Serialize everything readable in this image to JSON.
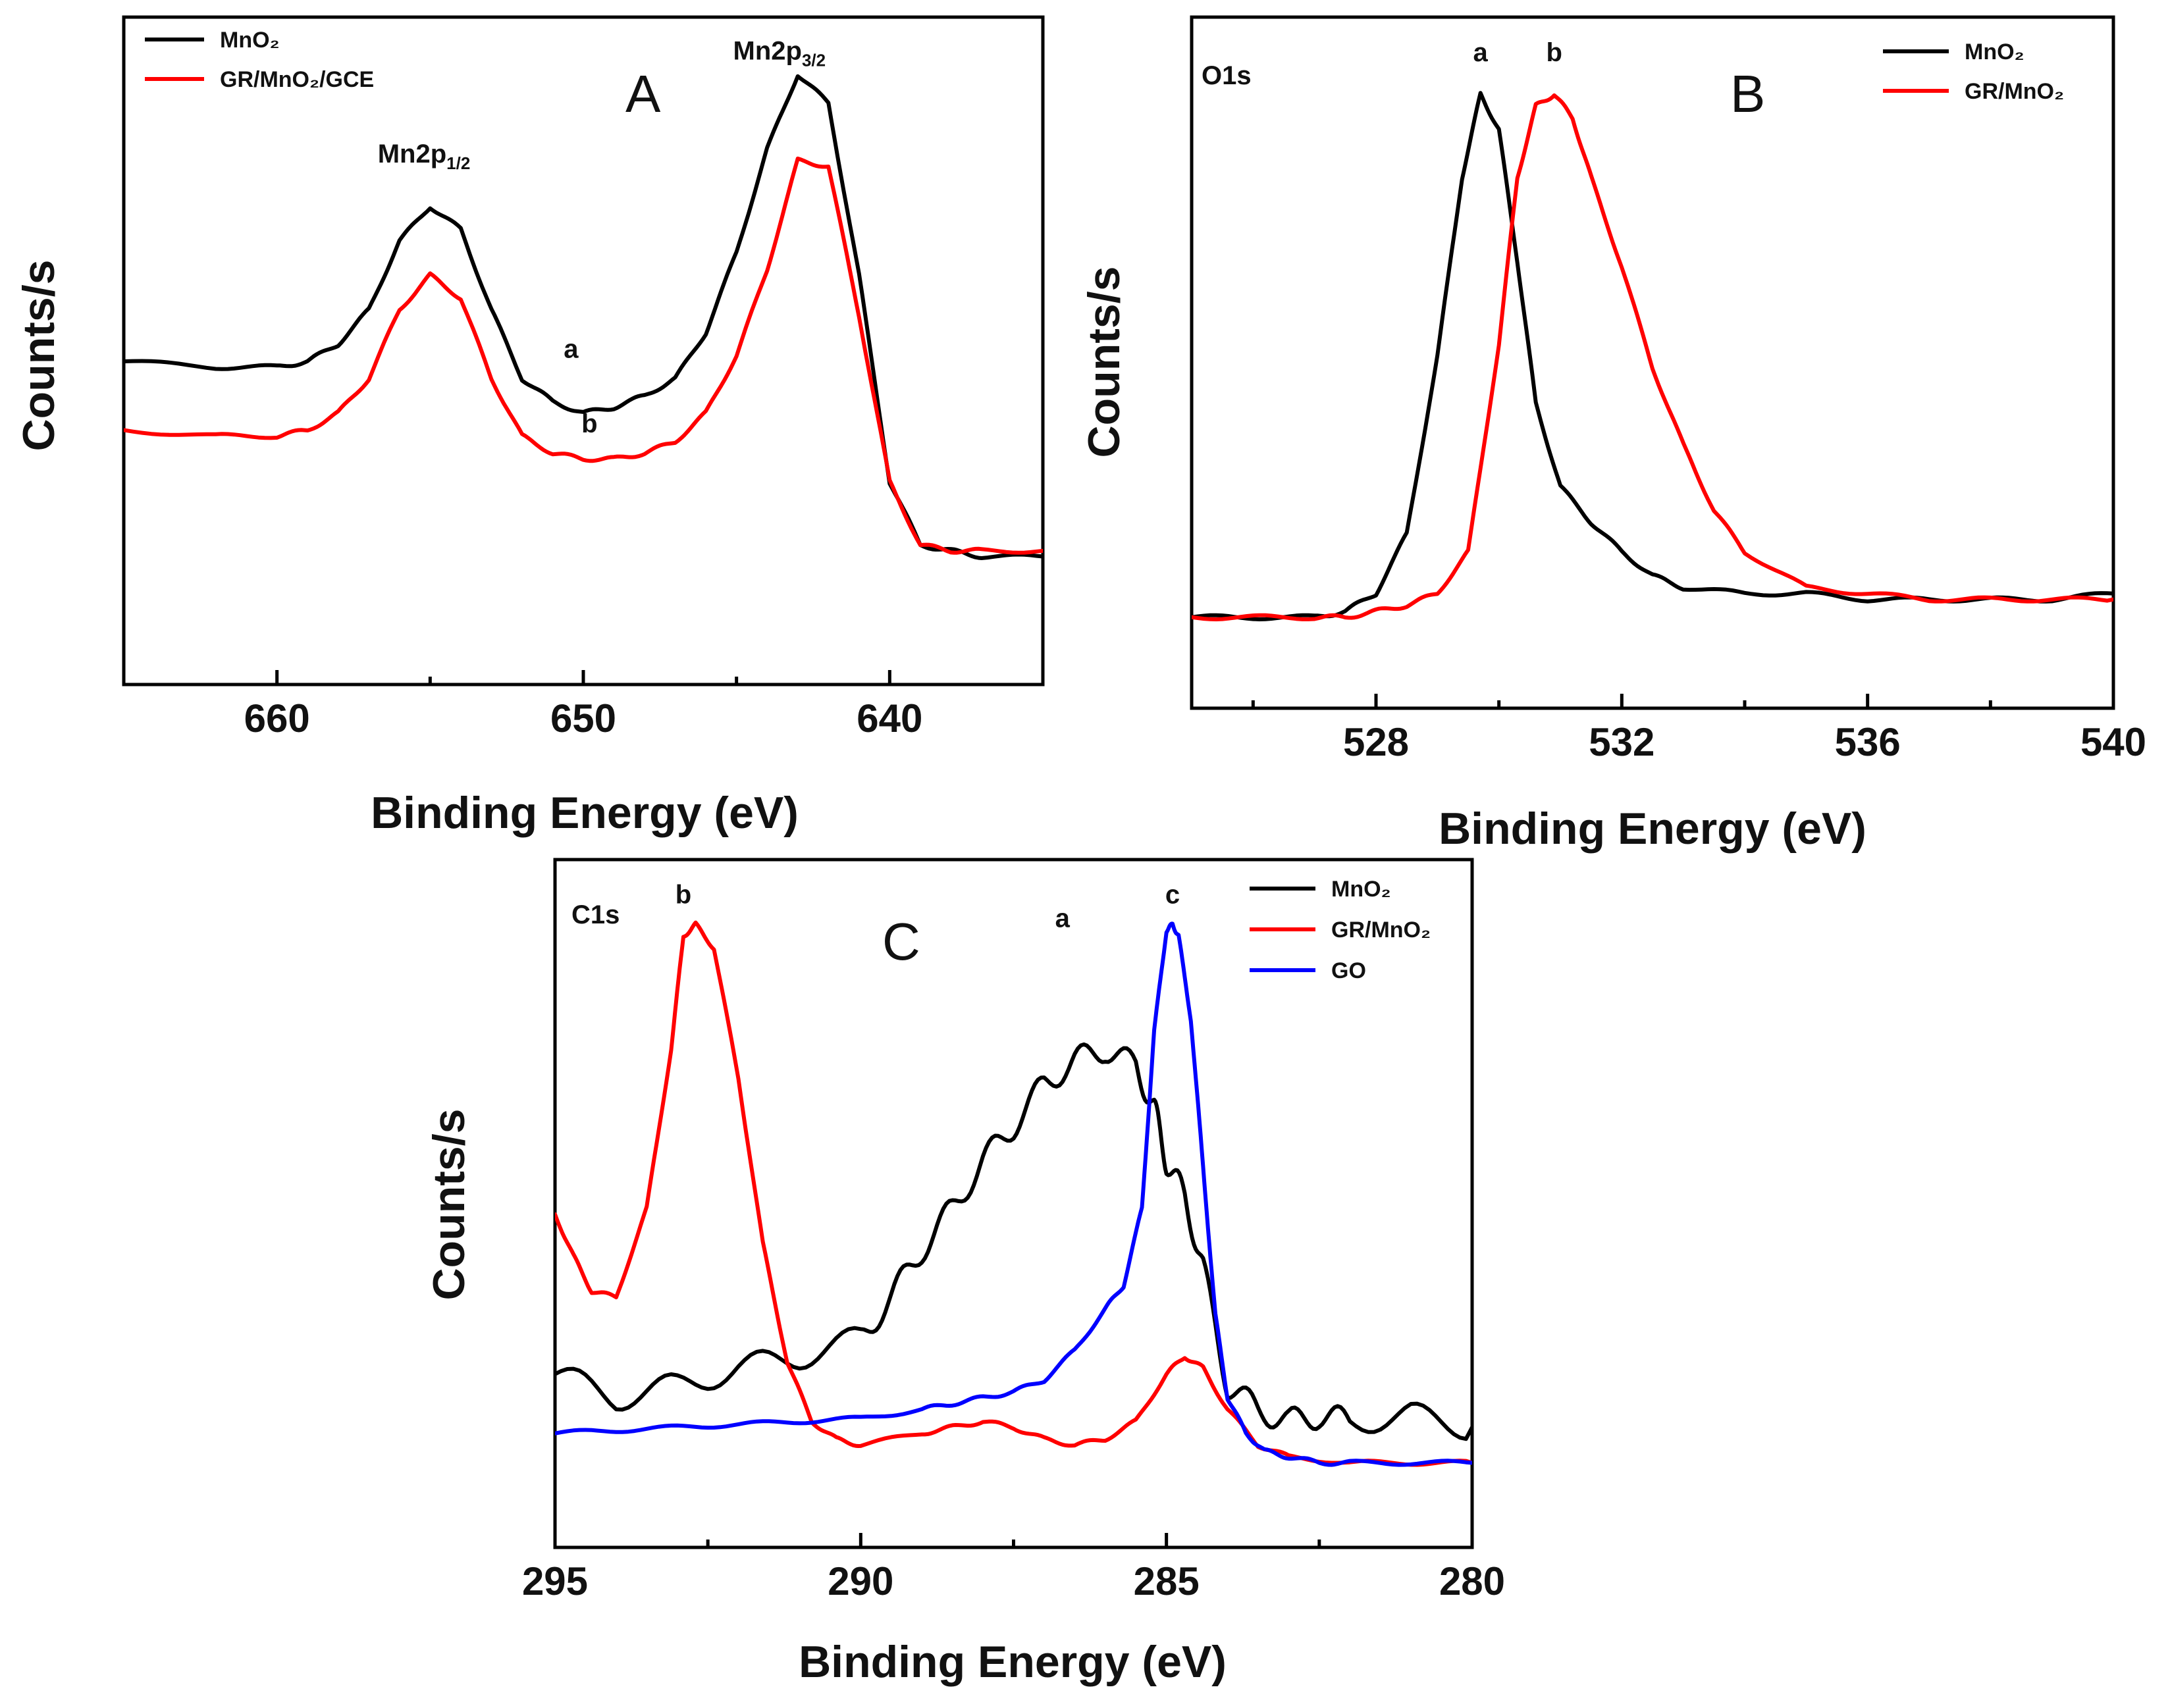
{
  "chart_data": [
    {
      "type": "line",
      "panel": "A",
      "xlabel": "Binding Energy (eV)",
      "ylabel": "Counts/s",
      "xlim": [
        665,
        635
      ],
      "ylim": [
        0,
        100
      ],
      "xticks": [
        660,
        650,
        640
      ],
      "legend": [
        "MnO₂",
        "GR/MnO₂/GCE"
      ],
      "legend_position": "top-left",
      "annotations": [
        {
          "text": "Mn2p",
          "sub": "1/2",
          "x": 655.2,
          "y": 80
        },
        {
          "text": "Mn2p",
          "sub": "3/2",
          "x": 643.6,
          "y": 98
        },
        {
          "text": "a",
          "x": 650.4,
          "y": 46
        },
        {
          "text": "b",
          "x": 649.8,
          "y": 33
        }
      ],
      "series": [
        {
          "name": "MnO₂",
          "color": "#000000",
          "x": [
            665,
            662,
            660,
            659,
            658,
            657,
            656,
            655,
            654,
            653,
            652,
            651,
            650,
            649,
            648,
            647,
            646,
            645,
            644,
            643,
            642,
            641,
            640,
            639,
            638,
            637,
            635
          ],
          "y": [
            47,
            46,
            46,
            47,
            50,
            56,
            68,
            74,
            70,
            56,
            44,
            40,
            38,
            39,
            41,
            44,
            52,
            66,
            84,
            97,
            92,
            62,
            26,
            15,
            14,
            13,
            13
          ]
        },
        {
          "name": "GR/MnO₂/GCE",
          "color": "#ff0000",
          "x": [
            665,
            662,
            660,
            659,
            658,
            657,
            656,
            655,
            654,
            653,
            652,
            651,
            650,
            649,
            648,
            647,
            646,
            645,
            644,
            643,
            642,
            641,
            640,
            639,
            638,
            637,
            635
          ],
          "y": [
            35,
            34,
            34,
            35,
            38,
            44,
            56,
            62,
            58,
            44,
            34,
            31,
            30,
            30,
            31,
            33,
            38,
            48,
            63,
            82,
            81,
            55,
            26,
            15,
            14,
            14,
            14
          ]
        }
      ]
    },
    {
      "type": "line",
      "panel": "B",
      "xlabel": "Binding Energy (eV)",
      "ylabel": "Counts/s",
      "xlim": [
        525,
        540
      ],
      "ylim": [
        0,
        100
      ],
      "xticks": [
        528,
        532,
        536,
        540
      ],
      "legend": [
        "MnO₂",
        "GR/MnO₂"
      ],
      "legend_position": "top-right",
      "corner_label": "O1s",
      "annotations": [
        {
          "text": "a",
          "x": 529.7,
          "y": 98
        },
        {
          "text": "b",
          "x": 530.9,
          "y": 98
        }
      ],
      "series": [
        {
          "name": "MnO₂",
          "color": "#000000",
          "x": [
            525,
            526,
            527,
            527.5,
            528,
            528.5,
            529,
            529.4,
            529.7,
            530,
            530.3,
            530.6,
            531,
            531.5,
            532,
            532.5,
            533,
            534,
            535,
            536,
            537,
            538,
            539,
            540
          ],
          "y": [
            6,
            6,
            6,
            7,
            10,
            20,
            50,
            80,
            94,
            88,
            66,
            42,
            28,
            22,
            17,
            13,
            11,
            10,
            10,
            9,
            9,
            9,
            9,
            10
          ]
        },
        {
          "name": "GR/MnO₂",
          "color": "#ff0000",
          "x": [
            525,
            526,
            527,
            527.5,
            528,
            528.5,
            529,
            529.5,
            530,
            530.3,
            530.6,
            530.9,
            531.2,
            531.5,
            532,
            532.5,
            533,
            533.5,
            534,
            535,
            536,
            537,
            538,
            539,
            540
          ],
          "y": [
            6,
            6,
            6,
            6,
            7,
            8,
            10,
            17,
            52,
            80,
            92,
            94,
            90,
            80,
            65,
            48,
            35,
            24,
            17,
            11,
            10,
            9,
            9,
            9,
            9
          ]
        }
      ]
    },
    {
      "type": "line",
      "panel": "C",
      "xlabel": "Binding Energy (eV)",
      "ylabel": "Counts/s",
      "xlim": [
        295,
        280
      ],
      "ylim": [
        0,
        100
      ],
      "xticks": [
        295,
        290,
        285,
        280
      ],
      "legend": [
        "MnO₂",
        "GR/MnO₂",
        "GO"
      ],
      "legend_position": "top-right",
      "corner_label": "C1s",
      "annotations": [
        {
          "text": "b",
          "x": 292.9,
          "y": 98
        },
        {
          "text": "a",
          "x": 286.7,
          "y": 94
        },
        {
          "text": "c",
          "x": 284.9,
          "y": 98
        }
      ],
      "series": [
        {
          "name": "MnO₂",
          "color": "#000000",
          "x": [
            295,
            294,
            293,
            292,
            291,
            290,
            289.5,
            289,
            288.5,
            288,
            287.5,
            287,
            286.5,
            286,
            285.5,
            285.2,
            285,
            284.7,
            284.4,
            284,
            283.5,
            283,
            282.5,
            282,
            281,
            280
          ],
          "y": [
            20,
            16,
            18,
            21,
            23,
            26,
            33,
            41,
            48,
            56,
            62,
            69,
            73,
            75,
            72,
            65,
            56,
            50,
            38,
            18,
            14,
            12,
            13,
            12,
            13,
            11
          ]
        },
        {
          "name": "GR/MnO₂",
          "color": "#ff0000",
          "x": [
            295,
            294.7,
            294.4,
            294,
            293.5,
            293.1,
            292.9,
            292.7,
            292.4,
            292,
            291.6,
            291.2,
            290.8,
            290.4,
            290,
            289,
            288.5,
            288,
            287.5,
            287,
            286.5,
            286,
            285.5,
            285,
            284.7,
            284.4,
            284,
            283.5,
            283,
            282,
            281,
            280
          ],
          "y": [
            47,
            40,
            34,
            33,
            48,
            75,
            94,
            96,
            92,
            70,
            42,
            22,
            12,
            9,
            8,
            10,
            11,
            12,
            11,
            9,
            8,
            9,
            12,
            20,
            23,
            21,
            14,
            8,
            6,
            5,
            5,
            5
          ]
        },
        {
          "name": "GO",
          "color": "#0000ff",
          "x": [
            295,
            294,
            293,
            292,
            291,
            290,
            289,
            288.5,
            288,
            287.5,
            287,
            286.5,
            286,
            285.7,
            285.4,
            285.2,
            285,
            284.9,
            284.8,
            284.6,
            284.4,
            284.2,
            284,
            283.7,
            283.4,
            283,
            282.5,
            282,
            281,
            280
          ],
          "y": [
            10,
            10.5,
            11,
            11.5,
            12,
            12.5,
            14,
            15,
            16,
            17,
            19,
            24,
            31,
            35,
            48,
            78,
            95,
            96,
            94,
            80,
            55,
            30,
            16,
            10,
            7,
            6,
            5,
            5,
            5,
            5
          ]
        }
      ]
    }
  ]
}
